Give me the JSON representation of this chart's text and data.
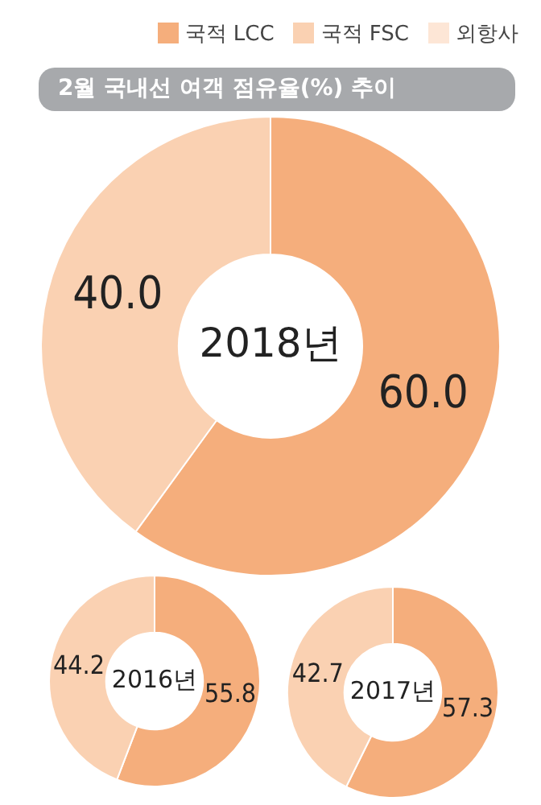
{
  "chart_data": [
    {
      "type": "donut",
      "title": "2월 국내선 여객 점유율(%) 추이",
      "annotations": [
        "2018년"
      ],
      "categories": [
        "국적 LCC",
        "국적 FSC",
        "외항사"
      ],
      "values": [
        60.0,
        40.0,
        0
      ],
      "value_labels": [
        "60.0",
        "40.0",
        null
      ],
      "colors": [
        "#f5ae7c",
        "#fad1b2",
        "#fde6d6"
      ],
      "legend": "top right"
    },
    {
      "type": "donut",
      "annotations": [
        "2016년"
      ],
      "categories": [
        null,
        null,
        null
      ],
      "values": [
        55.8,
        44.2,
        0
      ],
      "value_labels": [
        "55.8",
        "44.2",
        null
      ],
      "colors": [
        "#f5ae7c",
        "#fad1b2",
        "#fde6d6"
      ]
    },
    {
      "type": "donut",
      "annotations": [
        "2017년"
      ],
      "categories": [
        null,
        null,
        null
      ],
      "values": [
        57.3,
        42.7,
        0
      ],
      "value_labels": [
        "57.3",
        "42.7",
        null
      ],
      "colors": [
        "#f5ae7c",
        "#fad1b2",
        "#fde6d6"
      ]
    }
  ]
}
